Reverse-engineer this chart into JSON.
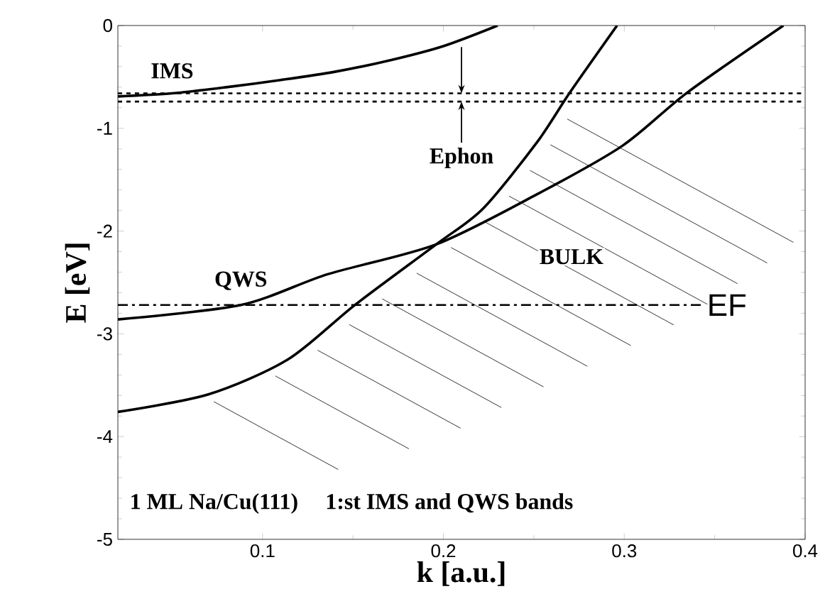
{
  "chart_data": {
    "type": "line",
    "xlabel": "k [a.u.]",
    "ylabel": "E [eV]",
    "xlim": [
      0.02,
      0.4
    ],
    "ylim": [
      -5,
      0
    ],
    "xticks": [
      0.1,
      0.2,
      0.3,
      0.4
    ],
    "yticks": [
      -5,
      -4,
      -3,
      -2,
      -1,
      0
    ],
    "marker": "none",
    "series": [
      {
        "name": "IMS",
        "color": "#000000",
        "x": [
          0.02,
          0.05,
          0.08,
          0.11,
          0.14,
          0.17,
          0.2,
          0.23
        ],
        "values": [
          -0.69,
          -0.66,
          -0.6,
          -0.53,
          -0.45,
          -0.34,
          -0.2,
          0
        ]
      },
      {
        "name": "QWS",
        "color": "#000000",
        "x": [
          0.02,
          0.088,
          0.136,
          0.196,
          0.252,
          0.299,
          0.335,
          0.388
        ],
        "values": [
          -2.86,
          -2.72,
          -2.42,
          -2.13,
          -1.64,
          -1.17,
          -0.65,
          0
        ]
      },
      {
        "color": "#000000",
        "x": [
          0.02,
          0.07,
          0.114,
          0.151,
          0.196,
          0.222,
          0.252,
          0.27,
          0.296
        ],
        "values": [
          -3.76,
          -3.59,
          -3.25,
          -2.72,
          -2.13,
          -1.78,
          -1.13,
          -0.65,
          0
        ]
      }
    ],
    "ref_lines": [
      {
        "axis": "y",
        "value": -0.66,
        "line_style": "dashed"
      },
      {
        "axis": "y",
        "value": -0.74,
        "line_style": "dashed"
      },
      {
        "axis": "y",
        "value": -2.72,
        "label": "EF",
        "line_style": "dashdot"
      }
    ],
    "annotations": [
      {
        "text": "Ephon",
        "x": 0.21,
        "y": -0.7
      },
      "BULK",
      "1 ML Na/Cu(111)",
      "1:st IMS and QWS bands"
    ]
  }
}
